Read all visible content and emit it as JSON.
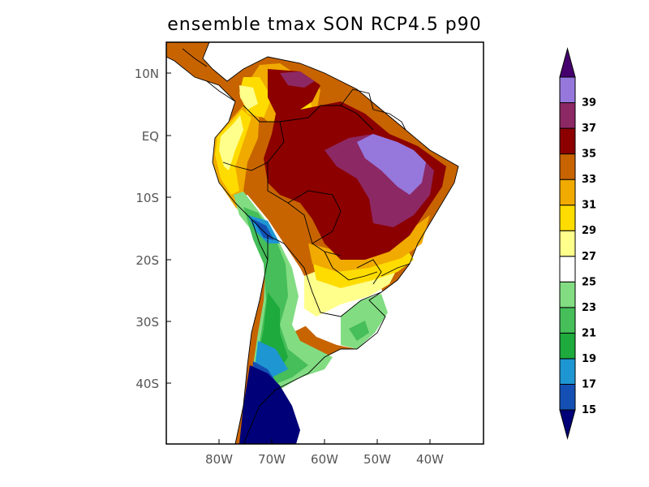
{
  "title": "ensemble tmax SON RCP4.5 p90",
  "lat_labels": [
    "10N",
    "EQ",
    "10S",
    "20S",
    "30S",
    "40S"
  ],
  "lon_labels": [
    "80W",
    "70W",
    "60W",
    "50W",
    "40W"
  ],
  "colorbar": {
    "labels": [
      "15",
      "17",
      "19",
      "21",
      "23",
      "25",
      "27",
      "29",
      "31",
      "33",
      "35",
      "37",
      "39"
    ],
    "bands": [
      {
        "range": "<15",
        "color": "#000078"
      },
      {
        "range": "15-17",
        "color": "#1450b4"
      },
      {
        "range": "17-19",
        "color": "#1e96d2"
      },
      {
        "range": "19-21",
        "color": "#1eaa3c"
      },
      {
        "range": "21-23",
        "color": "#46be5a"
      },
      {
        "range": "23-25",
        "color": "#82dc82"
      },
      {
        "range": "25-27",
        "color": "#ffffff"
      },
      {
        "range": "27-29",
        "color": "#ffff8c"
      },
      {
        "range": "29-31",
        "color": "#ffdc00"
      },
      {
        "range": "31-33",
        "color": "#f0aa00"
      },
      {
        "range": "33-35",
        "color": "#c86400"
      },
      {
        "range": "35-37",
        "color": "#8c0000"
      },
      {
        "range": "37-39",
        "color": "#8c2864"
      },
      {
        "range": "39-41",
        "color": "#9678dc"
      },
      {
        "range": ">41",
        "color": "#46006e"
      }
    ]
  }
}
